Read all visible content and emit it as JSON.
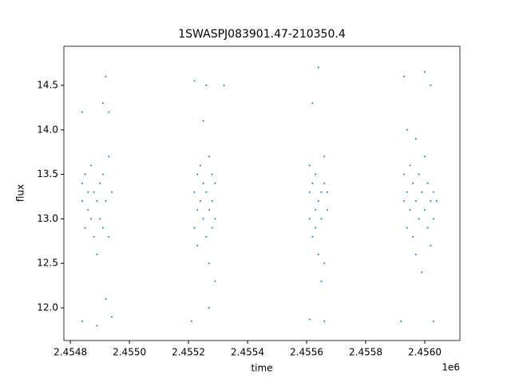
{
  "chart_data": {
    "type": "scatter",
    "title": "1SWASPJ083901.47-210350.4",
    "xlabel": "time",
    "ylabel": "flux",
    "x_offset_label": "1e6",
    "xlim": [
      2.454778,
      2.456119
    ],
    "ylim": [
      11.633,
      14.939
    ],
    "xticks": [
      2.4548,
      {
        "value": 2.455,
        "label": "2.4550"
      },
      2.4552,
      2.4554,
      2.4556,
      2.4558,
      {
        "value": 2.456,
        "label": "2.4560"
      }
    ],
    "yticks": [
      {
        "value": 12,
        "label": "12.0"
      },
      12.5,
      {
        "value": 13,
        "label": "13.0"
      },
      13.5,
      {
        "value": 14,
        "label": "14.0"
      },
      14.5
    ],
    "series": [
      {
        "color": "#1f77b4",
        "x": [
          2.45484,
          2.45484,
          2.45485,
          2.45485,
          2.45486,
          2.45486,
          2.45487,
          2.45487,
          2.45488,
          2.45488,
          2.45489,
          2.45489,
          2.4549,
          2.4549,
          2.45491,
          2.45491,
          2.45491,
          2.45492,
          2.45492,
          2.45492,
          2.45493,
          2.45493,
          2.45493,
          2.45494,
          2.45494,
          2.45484,
          2.45484,
          2.45489,
          2.45522,
          2.45522,
          2.45522,
          2.45523,
          2.45523,
          2.45523,
          2.45524,
          2.45524,
          2.45525,
          2.45525,
          2.45525,
          2.45526,
          2.45526,
          2.45526,
          2.45527,
          2.45527,
          2.45527,
          2.45528,
          2.45528,
          2.45528,
          2.45529,
          2.45529,
          2.45529,
          2.45532,
          2.45521,
          2.45527,
          2.45561,
          2.45561,
          2.45561,
          2.45562,
          2.45562,
          2.45562,
          2.45563,
          2.45563,
          2.45563,
          2.45564,
          2.45564,
          2.45564,
          2.45565,
          2.45565,
          2.45565,
          2.45566,
          2.45566,
          2.45566,
          2.45567,
          2.45567,
          2.45561,
          2.45566,
          2.45593,
          2.45593,
          2.45593,
          2.45594,
          2.45594,
          2.45594,
          2.45595,
          2.45595,
          2.45596,
          2.45596,
          2.45597,
          2.45597,
          2.45597,
          2.45598,
          2.45598,
          2.45599,
          2.45599,
          2.456,
          2.456,
          2.456,
          2.45601,
          2.45601,
          2.45602,
          2.45602,
          2.45602,
          2.45603,
          2.45603,
          2.45604,
          2.45592,
          2.45603
        ],
        "values": [
          13.2,
          13.4,
          12.9,
          13.5,
          13.1,
          13.3,
          13.0,
          13.6,
          12.8,
          13.3,
          13.2,
          12.6,
          13.4,
          13.0,
          13.5,
          12.9,
          14.3,
          14.6,
          13.2,
          12.1,
          13.7,
          12.8,
          14.2,
          13.3,
          11.9,
          11.85,
          14.2,
          11.8,
          13.3,
          12.9,
          14.55,
          13.5,
          13.1,
          12.7,
          13.6,
          13.2,
          13.0,
          13.4,
          14.1,
          12.8,
          13.3,
          14.5,
          13.1,
          12.5,
          13.7,
          13.2,
          12.9,
          13.5,
          13.0,
          13.4,
          12.3,
          14.5,
          11.85,
          12.0,
          13.3,
          13.0,
          13.6,
          12.8,
          13.4,
          14.3,
          13.1,
          13.5,
          12.9,
          13.2,
          14.7,
          12.6,
          13.3,
          13.0,
          12.3,
          13.4,
          12.5,
          13.7,
          13.1,
          13.3,
          11.87,
          11.85,
          13.2,
          13.5,
          14.6,
          12.9,
          13.3,
          14.0,
          13.1,
          13.6,
          12.8,
          13.4,
          13.2,
          12.6,
          13.9,
          13.0,
          13.5,
          13.3,
          12.4,
          13.1,
          13.7,
          14.65,
          12.9,
          13.4,
          13.2,
          14.5,
          12.7,
          13.0,
          13.3,
          13.2,
          11.85,
          11.85
        ]
      }
    ]
  }
}
